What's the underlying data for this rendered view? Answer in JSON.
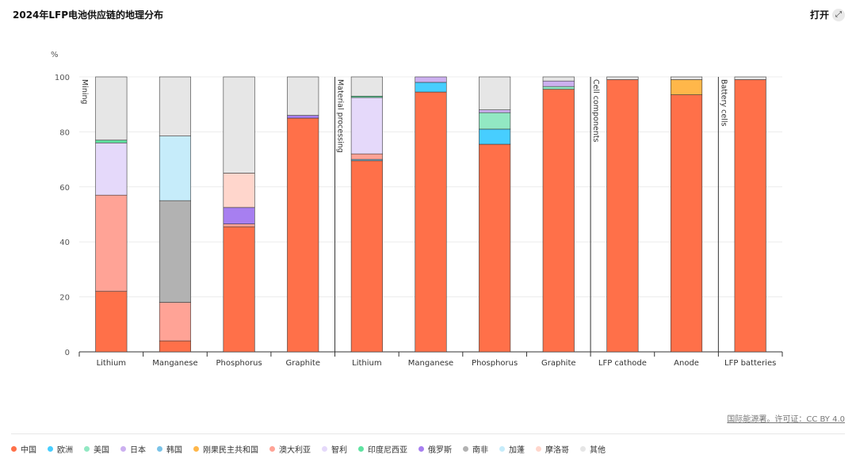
{
  "header": {
    "title": "2024年LFP电池供应链的地理分布",
    "open_label": "打开",
    "expand_icon": "expand-icon"
  },
  "source": "国际能源署。许可证：CC BY 4.0",
  "chart_data": {
    "type": "bar",
    "stacked": true,
    "ylabel": "%",
    "ylim": [
      0,
      100
    ],
    "yticks": [
      0,
      20,
      40,
      60,
      80,
      100
    ],
    "grid": true,
    "legend_position": "bottom",
    "groups": [
      {
        "label": "Mining",
        "categories": [
          "Lithium",
          "Manganese",
          "Phosphorus",
          "Graphite"
        ]
      },
      {
        "label": "Material processing",
        "categories": [
          "Lithium",
          "Manganese",
          "Phosphorus",
          "Graphite"
        ]
      },
      {
        "label": "Cell components",
        "categories": [
          "LFP cathode",
          "Anode"
        ]
      },
      {
        "label": "Battery cells",
        "categories": [
          "LFP batteries"
        ]
      }
    ],
    "series": [
      {
        "name": "中国",
        "color": "#ff7049",
        "values": [
          22,
          4,
          45.5,
          85,
          69.5,
          94.5,
          75.5,
          95.5,
          99,
          93.5,
          99
        ]
      },
      {
        "name": "欧洲",
        "color": "#47ceff",
        "values": [
          0,
          0,
          0,
          0,
          0,
          3.5,
          5.5,
          0,
          0,
          0,
          0
        ]
      },
      {
        "name": "美国",
        "color": "#92e8c3",
        "values": [
          0,
          0,
          0,
          0,
          0,
          0,
          6,
          1,
          0,
          0,
          0
        ]
      },
      {
        "name": "日本",
        "color": "#ccb0f0",
        "values": [
          0,
          0,
          0,
          0,
          0,
          2,
          1,
          2,
          0,
          0,
          0
        ]
      },
      {
        "name": "韩国",
        "color": "#7ac3e8",
        "values": [
          0,
          0,
          0,
          0,
          0.5,
          0,
          0,
          0,
          0,
          0,
          0
        ]
      },
      {
        "name": "刚果民主共和国",
        "color": "#ffb74a",
        "values": [
          0,
          0,
          0,
          0,
          0,
          0,
          0,
          0,
          0,
          5.5,
          0
        ]
      },
      {
        "name": "澳大利亚",
        "color": "#ffa396",
        "values": [
          35,
          14,
          1,
          0,
          2,
          0,
          0,
          0,
          0,
          0,
          0
        ]
      },
      {
        "name": "智利",
        "color": "#e5d9fa",
        "values": [
          19,
          0,
          0,
          0,
          20.5,
          0,
          0,
          0,
          0,
          0,
          0
        ]
      },
      {
        "name": "印度尼西亚",
        "color": "#5fe3a1",
        "values": [
          1,
          0,
          0,
          0,
          0.5,
          0,
          0,
          0,
          0,
          0,
          0
        ]
      },
      {
        "name": "俄罗斯",
        "color": "#a77ff0",
        "values": [
          0,
          0,
          6,
          1,
          0,
          0,
          0,
          0,
          0,
          0,
          0
        ]
      },
      {
        "name": "南非",
        "color": "#b2b2b2",
        "values": [
          0,
          37,
          0,
          0,
          0,
          0,
          0,
          0,
          0,
          0,
          0
        ]
      },
      {
        "name": "加蓬",
        "color": "#c6ecfa",
        "values": [
          0,
          23.5,
          0,
          0,
          0,
          0,
          0,
          0,
          0,
          0,
          0
        ]
      },
      {
        "name": "摩洛哥",
        "color": "#ffd6cc",
        "values": [
          0,
          0,
          12.5,
          0,
          0,
          0,
          0,
          0,
          0,
          0,
          0
        ]
      },
      {
        "name": "其他",
        "color": "#e6e6e6",
        "values": [
          23,
          21.5,
          35,
          14,
          7,
          0,
          12,
          1.5,
          1,
          1,
          1
        ]
      }
    ]
  }
}
